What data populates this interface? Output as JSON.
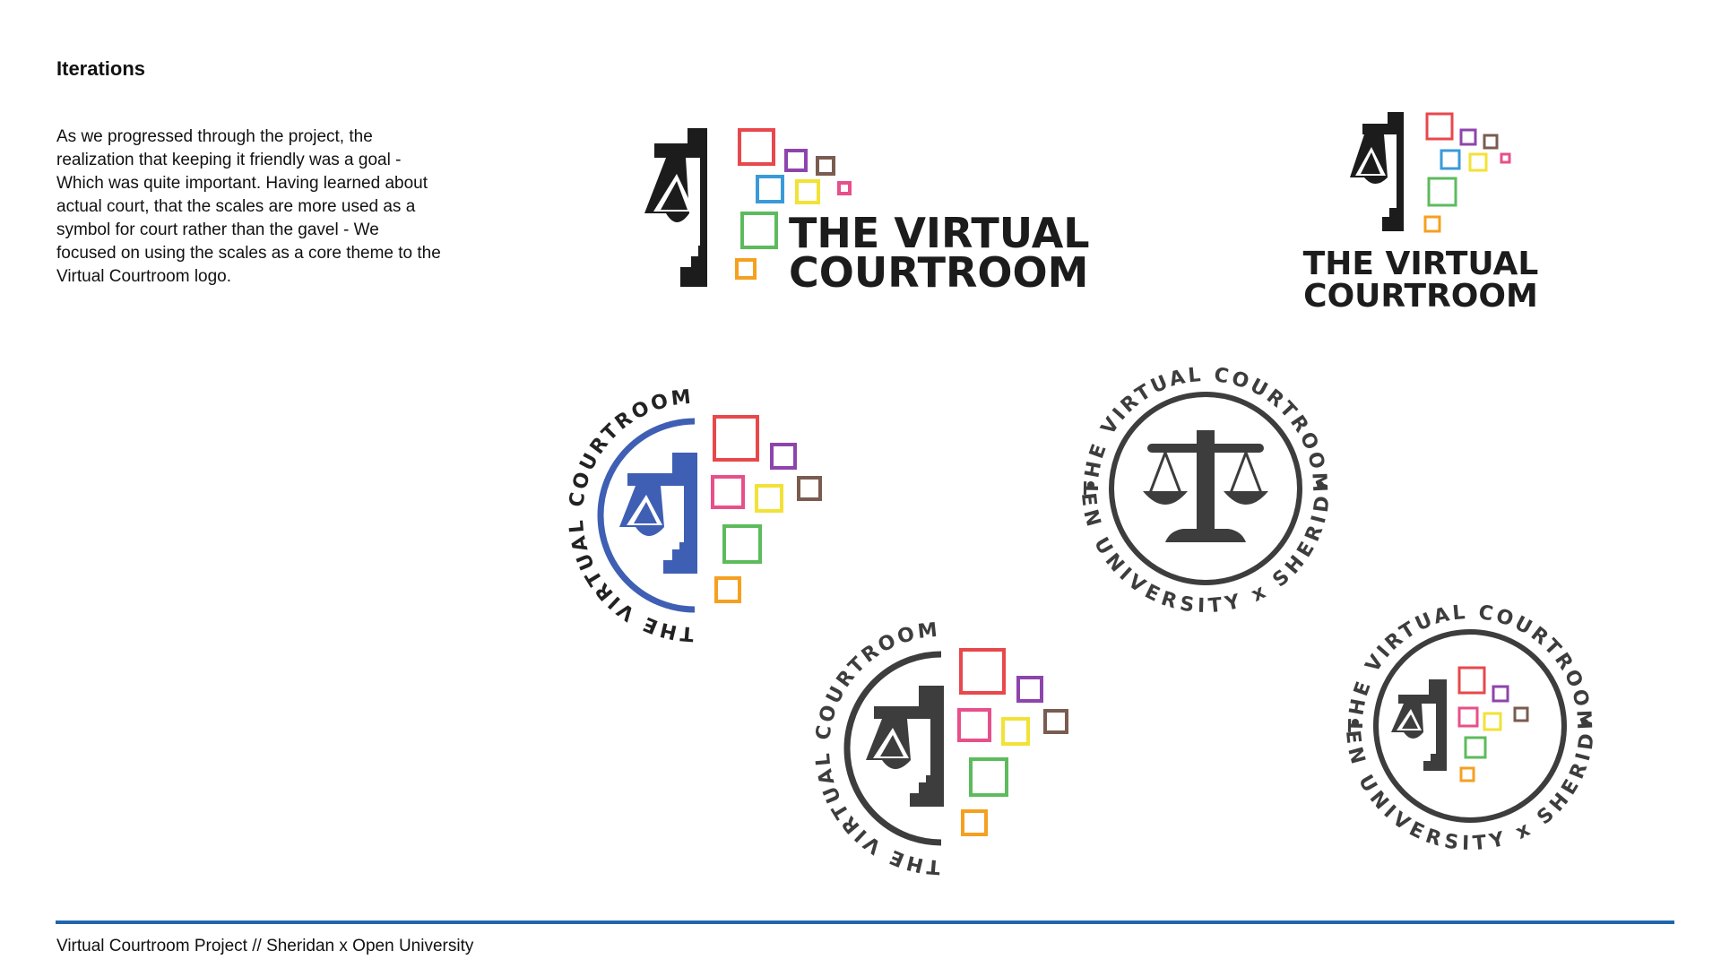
{
  "page": {
    "heading": "Iterations",
    "body": "As we progressed through the project, the realization that keeping it friendly was a goal - Which was quite important. Having learned about actual court, that the scales are more used as a symbol for court rather than the gavel - We focused on using the scales as a core theme to the Virtual Courtroom logo.",
    "footer": "Virtual Courtroom Project // Sheridan x Open University"
  },
  "logos": {
    "wordmark_line1": "THE VIRTUAL",
    "wordmark_line2": "COURTROOM",
    "arc_text": "THE VIRTUAL COURTROOM",
    "badge_top_text": "THE VIRTUAL COURTROOM",
    "badge_bottom_text": "OPEN UNIVERSITY x SHERIDAN"
  },
  "colors": {
    "black": "#1c1c1c",
    "dark_gray": "#3d3d3d",
    "blue": "#3f5fb4",
    "footer_rule": "#1f66ad",
    "square_red": "#e8484c",
    "square_purple": "#8e44ad",
    "square_brown": "#7a5c50",
    "square_blue": "#3a9ad9",
    "square_yellow": "#f2e237",
    "square_pink": "#e7508a",
    "square_green": "#5dbb5d",
    "square_orange": "#f5a020"
  }
}
